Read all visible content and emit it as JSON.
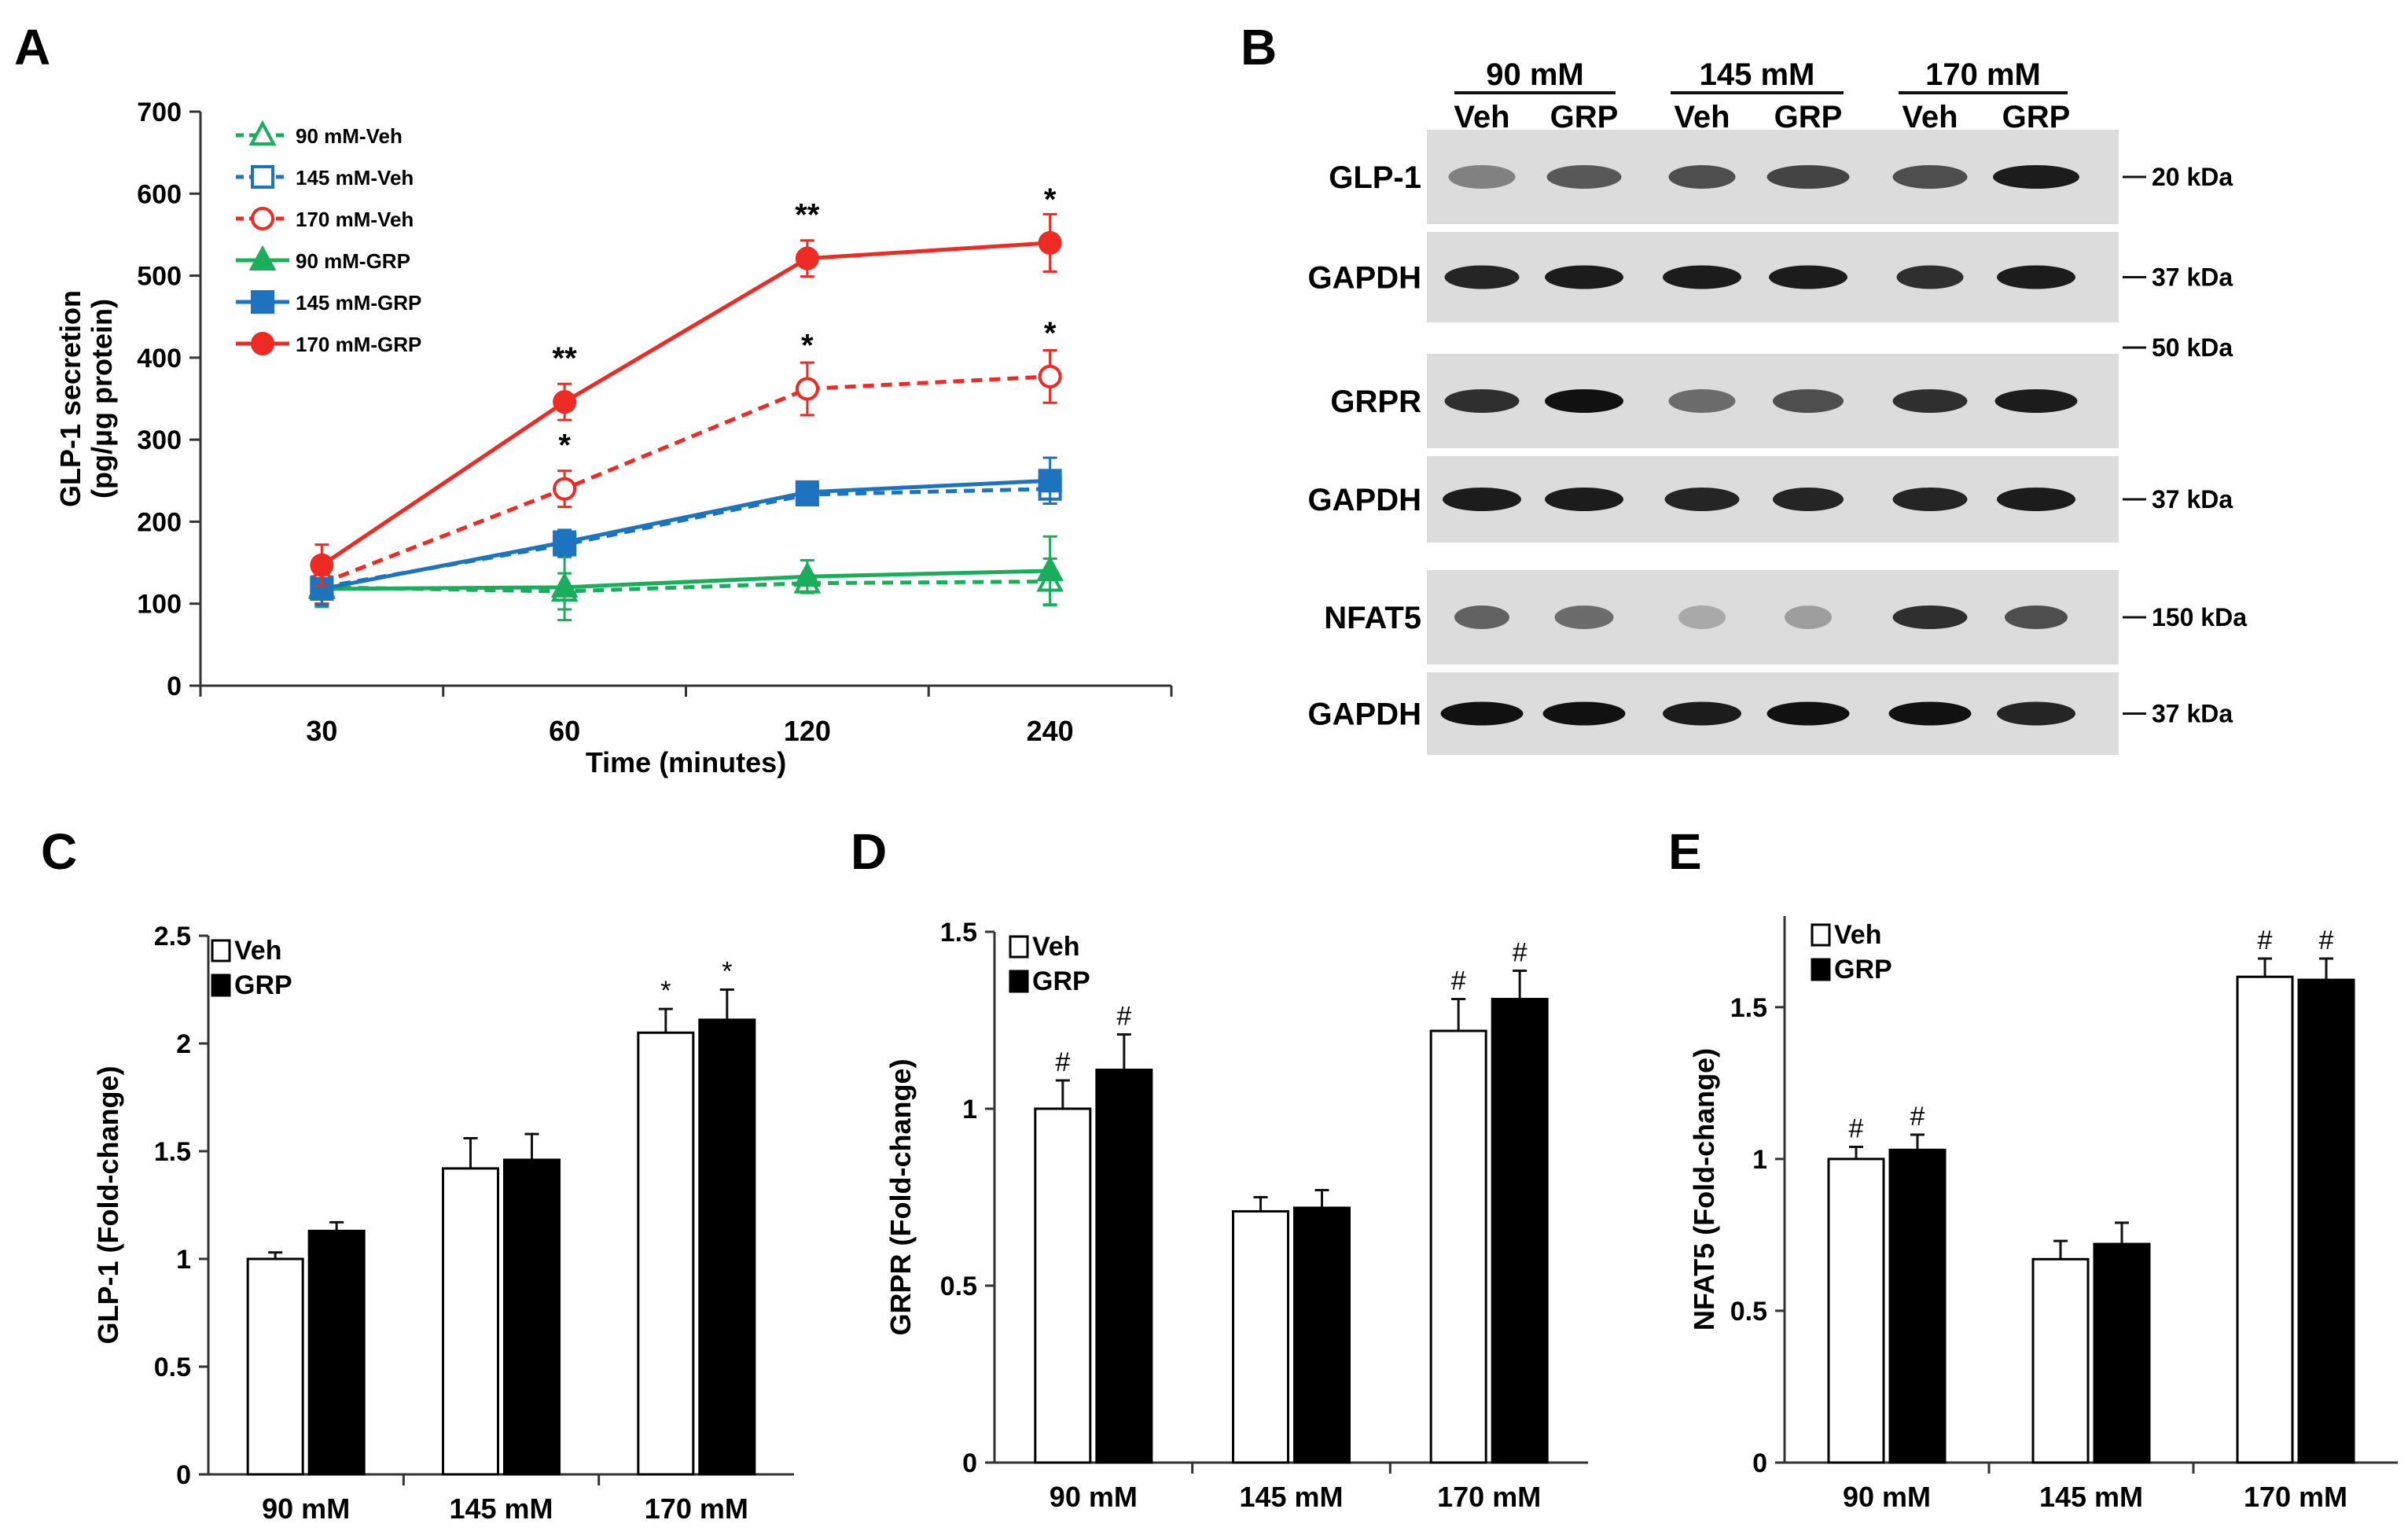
{
  "panels": {
    "A": "A",
    "B": "B",
    "C": "C",
    "D": "D",
    "E": "E"
  },
  "chart_data": [
    {
      "panel": "A",
      "type": "line",
      "xlabel": "Time (minutes)",
      "ylabel": "GLP-1 secretion",
      "ylabel2": "(pg/μg protein)",
      "categories": [
        "30",
        "60",
        "120",
        "240"
      ],
      "ylim": [
        0,
        700
      ],
      "yticks": [
        0,
        100,
        200,
        300,
        400,
        500,
        600,
        700
      ],
      "series": [
        {
          "name": "90 mM-Veh",
          "values": [
            120,
            115,
            125,
            127
          ],
          "errors": [
            20,
            22,
            10,
            28
          ],
          "color": "#1aad5b",
          "dashed": true,
          "marker": "triangle-open"
        },
        {
          "name": "145 mM-Veh",
          "values": [
            120,
            172,
            233,
            240
          ],
          "errors": [
            20,
            15,
            12,
            18
          ],
          "color": "#1e73be",
          "dashed": true,
          "marker": "square-open"
        },
        {
          "name": "170 mM-Veh",
          "values": [
            125,
            240,
            362,
            377
          ],
          "errors": [
            25,
            22,
            32,
            32
          ],
          "color": "#ee2a24",
          "dashed": true,
          "marker": "circle-open"
        },
        {
          "name": "90 mM-GRP",
          "values": [
            118,
            120,
            133,
            140
          ],
          "errors": [
            22,
            40,
            20,
            42
          ],
          "color": "#1aad5b",
          "dashed": false,
          "marker": "triangle"
        },
        {
          "name": "145 mM-GRP",
          "values": [
            118,
            175,
            236,
            250
          ],
          "errors": [
            20,
            15,
            10,
            28
          ],
          "color": "#1e73be",
          "dashed": false,
          "marker": "square"
        },
        {
          "name": "170 mM-GRP",
          "values": [
            147,
            346,
            521,
            540
          ],
          "errors": [
            25,
            22,
            22,
            35
          ],
          "color": "#ee2a24",
          "dashed": false,
          "marker": "circle"
        }
      ],
      "annotations": [
        {
          "category": "60",
          "y": 346,
          "text": "**"
        },
        {
          "category": "120",
          "y": 521,
          "text": "**"
        },
        {
          "category": "240",
          "y": 540,
          "text": "*"
        },
        {
          "category": "60",
          "y": 240,
          "text": "*"
        },
        {
          "category": "120",
          "y": 362,
          "text": "*"
        },
        {
          "category": "240",
          "y": 377,
          "text": "*"
        }
      ]
    },
    {
      "panel": "B",
      "type": "blot",
      "groups": [
        "90 mM",
        "145 mM",
        "170 mM"
      ],
      "lanes": [
        "Veh",
        "GRP",
        "Veh",
        "GRP",
        "Veh",
        "GRP"
      ],
      "rows": [
        {
          "label": "GLP-1",
          "marker": "20 kDa"
        },
        {
          "label": "GAPDH",
          "marker": "37 kDa"
        },
        {
          "label": "GRPR",
          "marker": "50 kDa"
        },
        {
          "label": "GAPDH",
          "marker": "37 kDa"
        },
        {
          "label": "NFAT5",
          "marker": "150 kDa"
        },
        {
          "label": "GAPDH",
          "marker": "37 kDa"
        }
      ]
    },
    {
      "panel": "C",
      "type": "bar",
      "ylabel": "GLP-1 (Fold-change)",
      "categories": [
        "90 mM",
        "145 mM",
        "170 mM"
      ],
      "ylim": [
        0,
        2.5
      ],
      "yticks": [
        "0",
        "0.5",
        "1",
        "1.5",
        "2",
        "2.5"
      ],
      "legend": [
        "Veh",
        "GRP"
      ],
      "series": [
        {
          "name": "Veh",
          "values": [
            1.0,
            1.42,
            2.05
          ],
          "errors": [
            0.03,
            0.14,
            0.11
          ],
          "marks": [
            "",
            "",
            "*"
          ]
        },
        {
          "name": "GRP",
          "values": [
            1.13,
            1.46,
            2.11
          ],
          "errors": [
            0.04,
            0.12,
            0.14
          ],
          "marks": [
            "",
            "",
            "*"
          ]
        }
      ]
    },
    {
      "panel": "D",
      "type": "bar",
      "ylabel": "GRPR (Fold-change)",
      "categories": [
        "90 mM",
        "145 mM",
        "170 mM"
      ],
      "ylim": [
        0,
        1.5
      ],
      "yticks": [
        "0",
        "0.5",
        "1",
        "1.5"
      ],
      "legend": [
        "Veh",
        "GRP"
      ],
      "series": [
        {
          "name": "Veh",
          "values": [
            1.0,
            0.71,
            1.22
          ],
          "errors": [
            0.08,
            0.04,
            0.09
          ],
          "marks": [
            "#",
            "",
            "#"
          ]
        },
        {
          "name": "GRP",
          "values": [
            1.11,
            0.72,
            1.31
          ],
          "errors": [
            0.1,
            0.05,
            0.08
          ],
          "marks": [
            "#",
            "",
            "#"
          ]
        }
      ]
    },
    {
      "panel": "E",
      "type": "bar",
      "ylabel": "NFAT5 (Fold-change)",
      "categories": [
        "90 mM",
        "145 mM",
        "170 mM"
      ],
      "ylim": [
        0,
        1.8
      ],
      "yticks": [
        "0",
        "0.5",
        "1",
        "1.5"
      ],
      "legend": [
        "Veh",
        "GRP"
      ],
      "series": [
        {
          "name": "Veh",
          "values": [
            1.0,
            0.67,
            1.6
          ],
          "errors": [
            0.04,
            0.06,
            0.06
          ],
          "marks": [
            "#",
            "",
            "#"
          ]
        },
        {
          "name": "GRP",
          "values": [
            1.03,
            0.72,
            1.59
          ],
          "errors": [
            0.05,
            0.07,
            0.07
          ],
          "marks": [
            "#",
            "",
            "#"
          ]
        }
      ]
    }
  ]
}
